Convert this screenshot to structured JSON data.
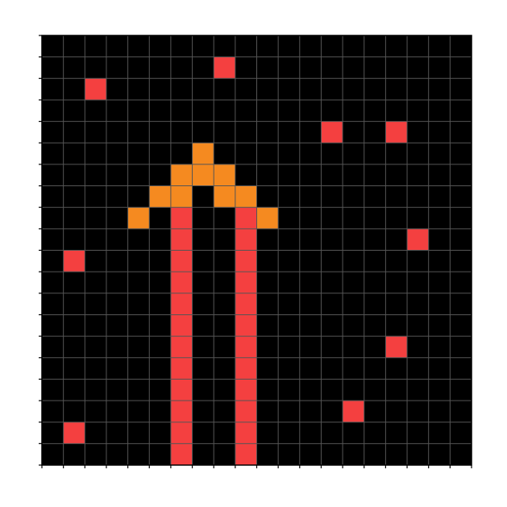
{
  "board": {
    "columns": 20,
    "rows": 20,
    "background_color": "#000000",
    "grid_line_color": "#555555",
    "axis_color": "#000000",
    "cell_types": {
      "red": {
        "color": "#f44040",
        "label": "red-cell"
      },
      "orange": {
        "color": "#f58a20",
        "label": "orange-cell"
      }
    },
    "cells": [
      {
        "col": 8,
        "row": 1,
        "type": "red"
      },
      {
        "col": 2,
        "row": 2,
        "type": "red"
      },
      {
        "col": 13,
        "row": 4,
        "type": "red"
      },
      {
        "col": 16,
        "row": 4,
        "type": "red"
      },
      {
        "col": 7,
        "row": 5,
        "type": "orange"
      },
      {
        "col": 6,
        "row": 6,
        "type": "orange"
      },
      {
        "col": 7,
        "row": 6,
        "type": "orange"
      },
      {
        "col": 8,
        "row": 6,
        "type": "orange"
      },
      {
        "col": 5,
        "row": 7,
        "type": "orange"
      },
      {
        "col": 6,
        "row": 7,
        "type": "orange"
      },
      {
        "col": 8,
        "row": 7,
        "type": "orange"
      },
      {
        "col": 9,
        "row": 7,
        "type": "orange"
      },
      {
        "col": 4,
        "row": 8,
        "type": "orange"
      },
      {
        "col": 10,
        "row": 8,
        "type": "orange"
      },
      {
        "col": 6,
        "row": 8,
        "type": "red"
      },
      {
        "col": 9,
        "row": 8,
        "type": "red"
      },
      {
        "col": 17,
        "row": 9,
        "type": "red"
      },
      {
        "col": 1,
        "row": 10,
        "type": "red"
      },
      {
        "col": 6,
        "row": 9,
        "type": "red"
      },
      {
        "col": 6,
        "row": 10,
        "type": "red"
      },
      {
        "col": 6,
        "row": 11,
        "type": "red"
      },
      {
        "col": 6,
        "row": 12,
        "type": "red"
      },
      {
        "col": 6,
        "row": 13,
        "type": "red"
      },
      {
        "col": 6,
        "row": 14,
        "type": "red"
      },
      {
        "col": 6,
        "row": 15,
        "type": "red"
      },
      {
        "col": 6,
        "row": 16,
        "type": "red"
      },
      {
        "col": 6,
        "row": 17,
        "type": "red"
      },
      {
        "col": 6,
        "row": 18,
        "type": "red"
      },
      {
        "col": 6,
        "row": 19,
        "type": "red"
      },
      {
        "col": 9,
        "row": 9,
        "type": "red"
      },
      {
        "col": 9,
        "row": 10,
        "type": "red"
      },
      {
        "col": 9,
        "row": 11,
        "type": "red"
      },
      {
        "col": 9,
        "row": 12,
        "type": "red"
      },
      {
        "col": 9,
        "row": 13,
        "type": "red"
      },
      {
        "col": 9,
        "row": 14,
        "type": "red"
      },
      {
        "col": 9,
        "row": 15,
        "type": "red"
      },
      {
        "col": 9,
        "row": 16,
        "type": "red"
      },
      {
        "col": 9,
        "row": 17,
        "type": "red"
      },
      {
        "col": 9,
        "row": 18,
        "type": "red"
      },
      {
        "col": 9,
        "row": 19,
        "type": "red"
      },
      {
        "col": 16,
        "row": 14,
        "type": "red"
      },
      {
        "col": 14,
        "row": 17,
        "type": "red"
      },
      {
        "col": 1,
        "row": 18,
        "type": "red"
      }
    ]
  }
}
